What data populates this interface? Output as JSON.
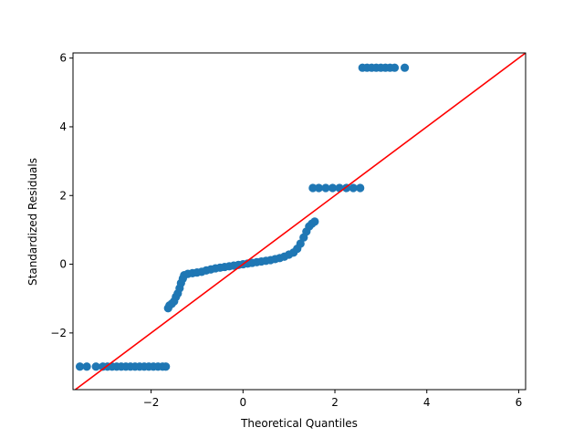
{
  "chart_data": {
    "type": "scatter",
    "title": "",
    "xlabel": "Theoretical Quantiles",
    "ylabel": "Standardized Residuals",
    "xlim": [
      -3.7,
      6.15
    ],
    "ylim": [
      -3.65,
      6.15
    ],
    "xticks": [
      -2,
      0,
      2,
      4,
      6
    ],
    "yticks": [
      -2,
      0,
      2,
      4,
      6
    ],
    "xtick_labels": [
      "−2",
      "0",
      "2",
      "4",
      "6"
    ],
    "ytick_labels": [
      "−2",
      "0",
      "2",
      "4",
      "6"
    ],
    "grid": false,
    "point_color": "#1f77b4",
    "reference_line": {
      "color": "#ff0000",
      "slope": 1,
      "intercept": 0
    },
    "points": [
      [
        -3.55,
        -2.98
      ],
      [
        -3.4,
        -2.98
      ],
      [
        -3.2,
        -2.98
      ],
      [
        -3.05,
        -2.98
      ],
      [
        -2.95,
        -2.98
      ],
      [
        -2.85,
        -2.98
      ],
      [
        -2.75,
        -2.98
      ],
      [
        -2.65,
        -2.98
      ],
      [
        -2.55,
        -2.98
      ],
      [
        -2.45,
        -2.98
      ],
      [
        -2.35,
        -2.98
      ],
      [
        -2.25,
        -2.98
      ],
      [
        -2.15,
        -2.98
      ],
      [
        -2.05,
        -2.98
      ],
      [
        -1.95,
        -2.98
      ],
      [
        -1.85,
        -2.98
      ],
      [
        -1.75,
        -2.98
      ],
      [
        -1.68,
        -2.98
      ],
      [
        -1.63,
        -1.28
      ],
      [
        -1.6,
        -1.2
      ],
      [
        -1.55,
        -1.15
      ],
      [
        -1.5,
        -1.08
      ],
      [
        -1.46,
        -0.95
      ],
      [
        -1.42,
        -0.85
      ],
      [
        -1.38,
        -0.7
      ],
      [
        -1.35,
        -0.55
      ],
      [
        -1.31,
        -0.42
      ],
      [
        -1.28,
        -0.32
      ],
      [
        -1.2,
        -0.28
      ],
      [
        -1.1,
        -0.26
      ],
      [
        -1.0,
        -0.24
      ],
      [
        -0.9,
        -0.22
      ],
      [
        -0.8,
        -0.18
      ],
      [
        -0.7,
        -0.15
      ],
      [
        -0.6,
        -0.12
      ],
      [
        -0.5,
        -0.1
      ],
      [
        -0.4,
        -0.08
      ],
      [
        -0.3,
        -0.06
      ],
      [
        -0.2,
        -0.04
      ],
      [
        -0.1,
        -0.02
      ],
      [
        0.0,
        0.0
      ],
      [
        0.1,
        0.02
      ],
      [
        0.2,
        0.04
      ],
      [
        0.3,
        0.06
      ],
      [
        0.4,
        0.08
      ],
      [
        0.5,
        0.1
      ],
      [
        0.6,
        0.12
      ],
      [
        0.7,
        0.15
      ],
      [
        0.8,
        0.18
      ],
      [
        0.9,
        0.22
      ],
      [
        1.0,
        0.28
      ],
      [
        1.1,
        0.34
      ],
      [
        1.18,
        0.45
      ],
      [
        1.25,
        0.6
      ],
      [
        1.32,
        0.78
      ],
      [
        1.38,
        0.95
      ],
      [
        1.44,
        1.1
      ],
      [
        1.5,
        1.18
      ],
      [
        1.56,
        1.24
      ],
      [
        1.52,
        2.22
      ],
      [
        1.65,
        2.22
      ],
      [
        1.8,
        2.22
      ],
      [
        1.95,
        2.22
      ],
      [
        2.1,
        2.22
      ],
      [
        2.25,
        2.22
      ],
      [
        2.4,
        2.22
      ],
      [
        2.55,
        2.22
      ],
      [
        2.6,
        5.72
      ],
      [
        2.7,
        5.72
      ],
      [
        2.8,
        5.72
      ],
      [
        2.9,
        5.72
      ],
      [
        3.0,
        5.72
      ],
      [
        3.1,
        5.72
      ],
      [
        3.2,
        5.72
      ],
      [
        3.3,
        5.72
      ],
      [
        3.52,
        5.72
      ]
    ]
  }
}
